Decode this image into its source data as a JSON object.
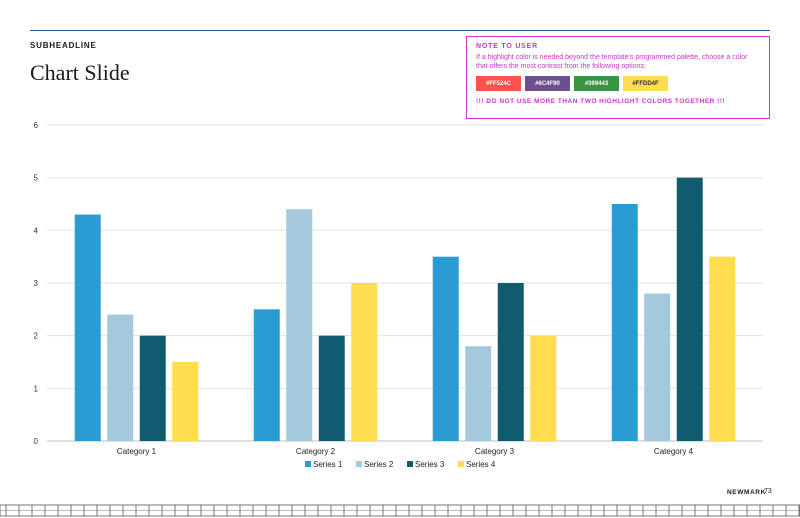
{
  "slide": {
    "subheadline": "SUBHEADLINE",
    "title": "Chart Slide",
    "brand": "NEWMARK",
    "page_number": "73"
  },
  "note": {
    "title": "NOTE TO USER",
    "text": "If a highlight color is needed beyond the template's programmed palette, choose a color that offers the most contrast from the following options:",
    "swatches": [
      {
        "label": "#FF524C",
        "color": "#FF524C"
      },
      {
        "label": "#6C4F90",
        "color": "#6C4F90"
      },
      {
        "label": "#399443",
        "color": "#399443"
      },
      {
        "label": "#FFDD4F",
        "color": "#FFDD4F"
      }
    ],
    "warning": "!!! DO NOT USE MORE THAN TWO HIGHLIGHT COLORS TOGETHER !!!"
  },
  "chart_data": {
    "type": "bar",
    "categories": [
      "Category 1",
      "Category 2",
      "Category 3",
      "Category 4"
    ],
    "series": [
      {
        "name": "Series 1",
        "color": "#2A9BD3",
        "values": [
          4.3,
          2.5,
          3.5,
          4.5
        ]
      },
      {
        "name": "Series 2",
        "color": "#A4C8DC",
        "values": [
          2.4,
          4.4,
          1.8,
          2.8
        ]
      },
      {
        "name": "Series 3",
        "color": "#115B6E",
        "values": [
          2,
          2,
          3,
          5
        ]
      },
      {
        "name": "Series 4",
        "color": "#FFDD4F",
        "values": [
          1.5,
          3,
          2,
          3.5
        ]
      }
    ],
    "ylim": [
      0,
      6
    ],
    "yticks": [
      "0",
      "1",
      "2",
      "3",
      "4",
      "5",
      "6"
    ],
    "grid": true,
    "legend": "bottom"
  }
}
